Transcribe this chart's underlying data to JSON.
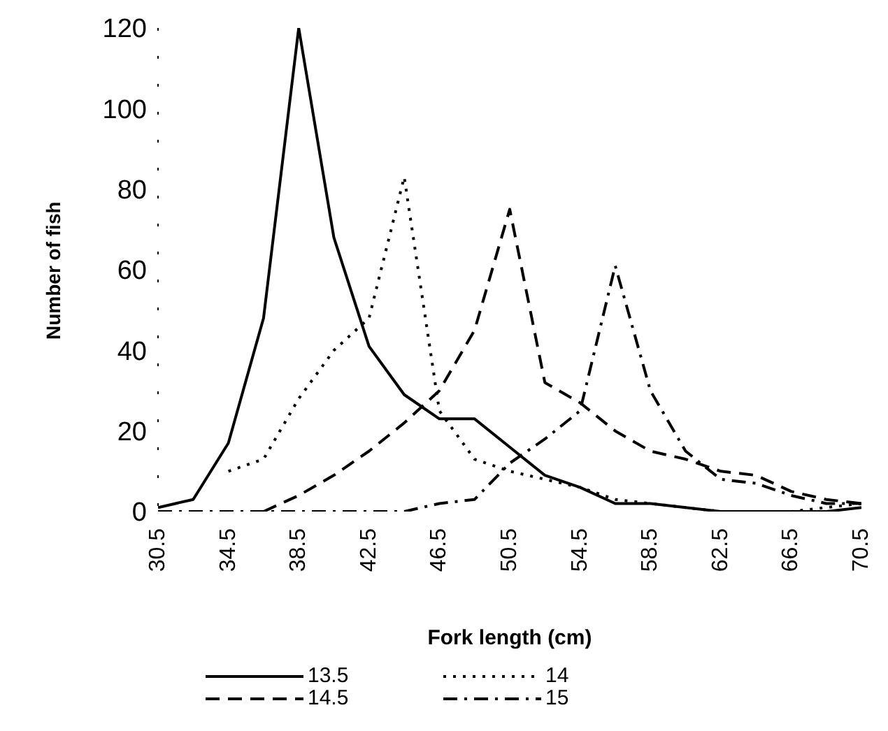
{
  "chart_data": {
    "type": "line",
    "xlabel": "Fork length (cm)",
    "ylabel": "Number of fish",
    "x": [
      30.5,
      32.5,
      34.5,
      36.5,
      38.5,
      40.5,
      42.5,
      44.5,
      46.5,
      48.5,
      50.5,
      52.5,
      54.5,
      56.5,
      58.5,
      60.5,
      62.5,
      64.5,
      66.5,
      68.5,
      70.5
    ],
    "series": [
      {
        "name": "13.5",
        "color": "#000000",
        "line_style": "solid",
        "values": [
          1,
          3,
          17,
          48,
          120,
          68,
          41,
          29,
          23,
          23,
          16,
          9,
          6,
          2,
          2,
          1,
          0,
          0,
          0,
          0,
          1
        ]
      },
      {
        "name": "14",
        "color": "#000000",
        "line_style": "dotted",
        "values": [
          null,
          null,
          10,
          13,
          28,
          40,
          48,
          83,
          25,
          13,
          10,
          8,
          6,
          3,
          2,
          1,
          0,
          0,
          0,
          1,
          2
        ]
      },
      {
        "name": "14.5",
        "color": "#000000",
        "line_style": "dashed",
        "values": [
          null,
          null,
          null,
          0,
          4,
          9,
          15,
          22,
          30,
          45,
          75,
          32,
          27,
          20,
          15,
          13,
          10,
          9,
          5,
          3,
          2
        ]
      },
      {
        "name": "15",
        "color": "#000000",
        "line_style": "dashdot",
        "values": [
          0,
          0,
          0,
          0,
          0,
          0,
          0,
          0,
          2,
          3,
          12,
          18,
          25,
          61,
          30,
          15,
          8,
          7,
          4,
          2,
          2
        ]
      }
    ],
    "xlim": [
      30.5,
      70.5
    ],
    "xticks": [
      30.5,
      34.5,
      38.5,
      42.5,
      46.5,
      50.5,
      54.5,
      58.5,
      62.5,
      66.5,
      70.5
    ],
    "ylim": [
      0,
      120
    ],
    "yticks": [
      0,
      20,
      40,
      60,
      80,
      100,
      120
    ],
    "grid": false,
    "legend": "bottom",
    "marker": "none"
  }
}
